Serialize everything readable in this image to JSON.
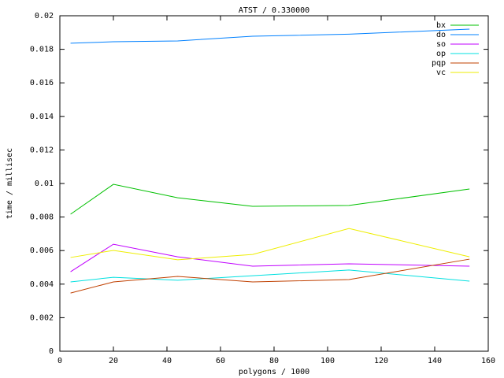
{
  "chart_data": {
    "type": "line",
    "title": "ATST / 0.330000",
    "xlabel": "polygons / 1000",
    "ylabel": "time / millisec",
    "x": [
      4,
      20,
      44,
      72,
      108,
      153
    ],
    "series": [
      {
        "name": "bx",
        "color": "#00c000",
        "values": [
          0.00817,
          0.00995,
          0.00915,
          0.00864,
          0.00869,
          0.00967
        ]
      },
      {
        "name": "do",
        "color": "#0080ff",
        "values": [
          0.01836,
          0.01845,
          0.0185,
          0.01878,
          0.0189,
          0.0192
        ]
      },
      {
        "name": "so",
        "color": "#c000ff",
        "values": [
          0.00474,
          0.00638,
          0.00563,
          0.00507,
          0.00521,
          0.00507
        ]
      },
      {
        "name": "op",
        "color": "#00e0e0",
        "values": [
          0.00413,
          0.00441,
          0.00423,
          0.0045,
          0.00484,
          0.00418
        ]
      },
      {
        "name": "pqp",
        "color": "#c04000",
        "values": [
          0.00347,
          0.00413,
          0.00446,
          0.00413,
          0.00427,
          0.00549
        ]
      },
      {
        "name": "vc",
        "color": "#eeee00",
        "values": [
          0.00559,
          0.00601,
          0.00545,
          0.00577,
          0.00732,
          0.00563
        ]
      }
    ],
    "xlim": [
      0,
      160
    ],
    "xticks": [
      0,
      20,
      40,
      60,
      80,
      100,
      120,
      140,
      160
    ],
    "ylim": [
      0,
      0.02
    ],
    "yticks": [
      0,
      0.002,
      0.004,
      0.006,
      0.008,
      0.01,
      0.012,
      0.014,
      0.016,
      0.018,
      0.02
    ],
    "legend": "top-right",
    "grid": false
  }
}
